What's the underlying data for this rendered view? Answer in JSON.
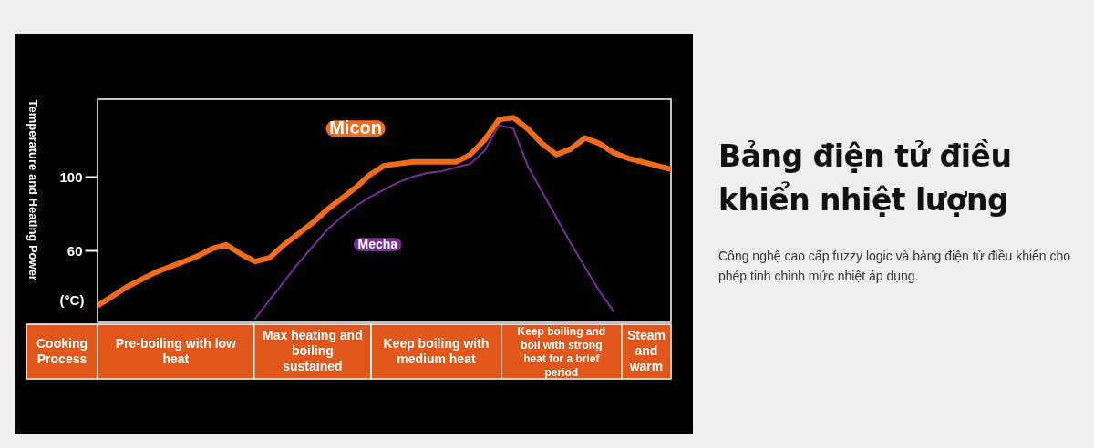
{
  "chart_data": {
    "type": "line",
    "title": "Bảng điện tử điều khiển nhiệt lượng",
    "ylabel": "Temperature and Heating Power",
    "xlabel": "Cooking Process",
    "annotations": [
      "(°C)",
      "Pre-boiling with low heat",
      "Max heating and boiling sustained",
      "Keep boiling with medium heat",
      "Keep boiling and boil with strong heat for a brief period",
      "Steam and warm",
      "Công nghệ cao cấp fuzzy logic và bảng điện tử điều khiển cho phép tinh chỉnh mức nhiệt áp dụng."
    ],
    "categories": [
      null,
      null,
      null,
      null,
      null,
      null,
      null,
      null,
      null,
      null,
      null,
      null,
      null,
      null,
      null,
      null,
      null,
      null,
      null,
      null,
      null,
      null,
      null,
      null,
      null,
      null,
      null,
      null,
      null,
      null,
      null,
      null,
      null,
      null,
      null,
      null,
      null,
      null,
      null,
      null,
      null
    ],
    "ylim": [
      21,
      142
    ],
    "yticks": [
      60,
      100
    ],
    "tick_labels": "y",
    "series": [
      {
        "name": "Micon",
        "color": "#f26a1b",
        "values": [
          30,
          35,
          40,
          44,
          48,
          51,
          54,
          57,
          61,
          63,
          58,
          54,
          56,
          63,
          69,
          75,
          82,
          88,
          94,
          101,
          106,
          107,
          108,
          108,
          108,
          108,
          112,
          120,
          131,
          132,
          126,
          118,
          112,
          115,
          121,
          118,
          113,
          110,
          108,
          106,
          104
        ]
      },
      {
        "name": "Mecha",
        "color": "#7b2c9b",
        "values": [
          null,
          null,
          null,
          null,
          null,
          null,
          null,
          null,
          null,
          null,
          null,
          23,
          33,
          43,
          53,
          62,
          71,
          78,
          84,
          89,
          93,
          97,
          100,
          102,
          103,
          105,
          107,
          114,
          128,
          126,
          106,
          92,
          78,
          64,
          51,
          38,
          27,
          null,
          null,
          null,
          null
        ]
      }
    ]
  }
}
